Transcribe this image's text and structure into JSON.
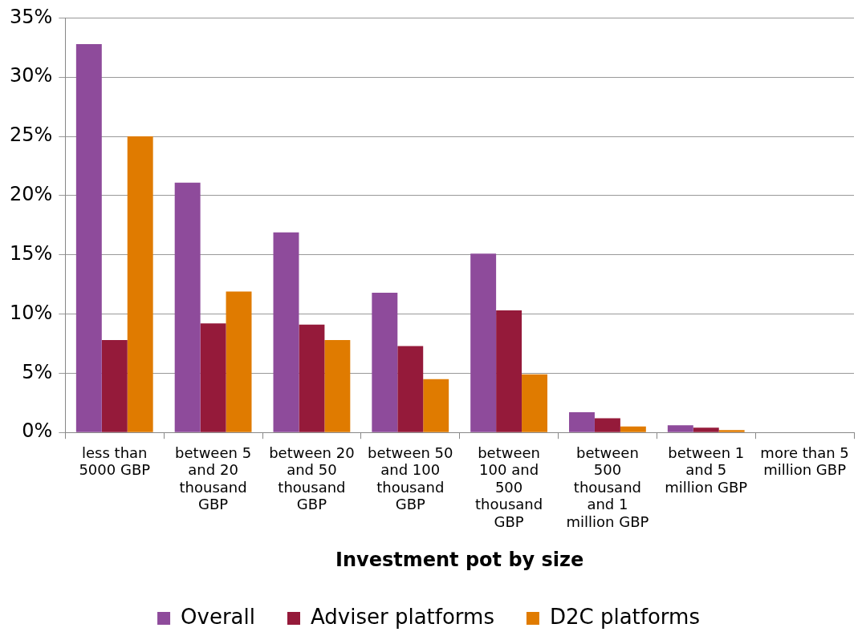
{
  "chart_data": {
    "type": "bar",
    "xlabel": "Investment pot by size",
    "categories": [
      "less than 5000 GBP",
      "between 5 and 20 thousand GBP",
      "between 20 and 50 thousand GBP",
      "between 50 and 100 thousand GBP",
      "between 100 and 500 thousand GBP",
      "between 500 thousand and 1 million GBP",
      "between 1 and 5 million GBP",
      "more than 5 million GBP"
    ],
    "series": [
      {
        "name": "Overall",
        "color": "#8e4b9b",
        "values": [
          32.8,
          21.1,
          16.9,
          11.8,
          15.1,
          1.7,
          0.6,
          0
        ]
      },
      {
        "name": "Adviser platforms",
        "color": "#951a3a",
        "values": [
          7.8,
          9.2,
          9.1,
          7.3,
          10.3,
          1.2,
          0.4,
          0
        ]
      },
      {
        "name": "D2C platforms",
        "color": "#e07b00",
        "values": [
          25.0,
          11.9,
          7.8,
          4.5,
          4.9,
          0.5,
          0.2,
          0
        ]
      }
    ],
    "ylim": [
      0,
      35
    ],
    "yticks": [
      {
        "value": 0,
        "label": "0%"
      },
      {
        "value": 5,
        "label": "5%"
      },
      {
        "value": 10,
        "label": "10%"
      },
      {
        "value": 15,
        "label": "15%"
      },
      {
        "value": 20,
        "label": "20%"
      },
      {
        "value": 25,
        "label": "25%"
      },
      {
        "value": 30,
        "label": "30%"
      },
      {
        "value": 35,
        "label": "35%"
      }
    ],
    "grid": "y",
    "legend": "bottom"
  }
}
